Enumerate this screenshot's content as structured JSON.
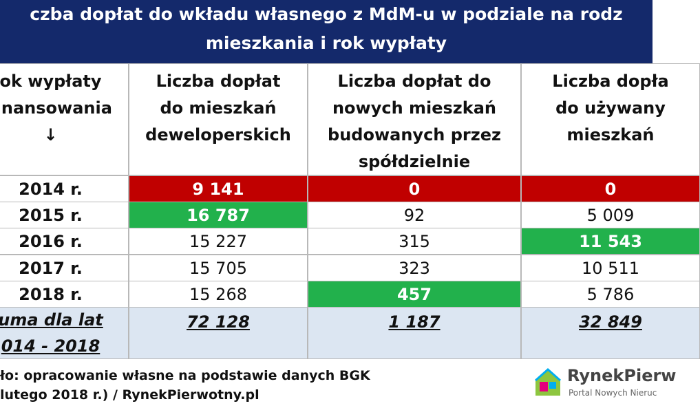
{
  "title": [
    "czba dopłat do wkładu własnego z MdM-u w podziale na rodz",
    "mieszkania i rok wypłaty"
  ],
  "table": {
    "header": [
      [
        "ok wypłaty",
        "finansowania",
        "↓"
      ],
      [
        "Liczba dopłat",
        "do mieszkań",
        "deweloperskich"
      ],
      [
        "Liczba dopłat do",
        "nowych mieszkań",
        "budowanych przez",
        "spółdzielnie"
      ],
      [
        "Liczba dopła",
        "do używany",
        "mieszkań"
      ]
    ],
    "rows": [
      [
        "2014 r.",
        "9 141",
        "0",
        "0"
      ],
      [
        "2015 r.",
        "16 787",
        "92",
        "5 009"
      ],
      [
        "2016 r.",
        "15 227",
        "315",
        "11 543"
      ],
      [
        "2017 r.",
        "15 705",
        "323",
        "10 511"
      ],
      [
        "2018 r.",
        "15 268",
        "457",
        "5 786"
      ]
    ],
    "total": {
      "label": [
        "uma dla lat",
        "014 - 2018"
      ],
      "values": [
        "72 128",
        "1 187",
        "32 849"
      ]
    }
  },
  "source": [
    "ło: opracowanie własne na podstawie danych BGK",
    "lutego 2018 r.) / RynekPierwotny.pl"
  ],
  "logo": {
    "name": "RynekPierw",
    "tagline": "Portal Nowych Nieruc"
  }
}
